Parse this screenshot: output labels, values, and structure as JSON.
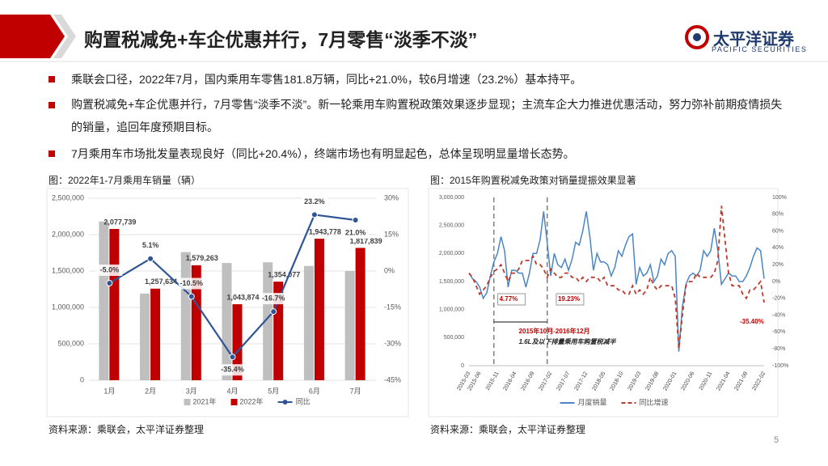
{
  "header": {
    "title": "购置税减免+车企优惠并行，7月零售“淡季不淡”",
    "logo_cn": "太平洋证券",
    "logo_en": "PACIFIC SECURITIES"
  },
  "bullets": [
    "乘联会口径，2022年7月，国内乘用车零售181.8万辆，同比+21.0%，较6月增速（23.2%）基本持平。",
    "购置税减免+车企优惠并行，7月零售“淡季不淡”。新一轮乘用车购置税政策效果逐步显现；主流车企大力推进优惠活动，努力弥补前期疫情损失的销量，追回年度预期目标。",
    "7月乘用车市场批发量表现良好（同比+20.4%），终端市场也有明显起色，总体呈现明显量增长态势。"
  ],
  "sources": [
    "资料来源：乘联会，太平洋证券整理",
    "资料来源：乘联会，太平洋证券整理"
  ],
  "page_number": "5",
  "chart_data": [
    {
      "type": "bar",
      "title": "图：2022年1-7月乘用车销量（辆）",
      "categories": [
        "1月",
        "2月",
        "3月",
        "4月",
        "5月",
        "6月",
        "7月"
      ],
      "series": [
        {
          "name": "2021年",
          "color": "#bfbfbf",
          "values": [
            2180000,
            1190000,
            1760000,
            1610000,
            1620000,
            1570000,
            1500000
          ]
        },
        {
          "name": "2022年",
          "color": "#c00000",
          "values": [
            2077739,
            1257634,
            1579263,
            1043874,
            1354077,
            1943778,
            1817839
          ],
          "value_labels": [
            "2,077,739",
            "1,257,634",
            "1,579,263",
            "1,043,874",
            "1,354,077",
            "1,943,778",
            "1,817,839"
          ]
        },
        {
          "name": "同比",
          "type": "line",
          "axis": "y2",
          "color": "#2f5597",
          "values": [
            -5.0,
            5.1,
            -10.5,
            -35.4,
            -16.7,
            23.2,
            21.0
          ],
          "value_labels": [
            "-5.0%",
            "5.1%",
            "-10.5%",
            "-35.4%",
            "-16.7%",
            "23.2%",
            "21.0%"
          ]
        }
      ],
      "ylim": [
        0,
        2500000
      ],
      "yticks": [
        0,
        {
          "value": 500000,
          "label": "500,000"
        },
        {
          "value": 1000000,
          "label": "1,000,000"
        },
        {
          "value": 1500000,
          "label": "1,500,000"
        },
        {
          "value": 2000000,
          "label": "2,000,000"
        },
        {
          "value": 2500000,
          "label": "2,500,000"
        }
      ],
      "y2lim": [
        -45,
        30
      ],
      "y2ticks": [
        {
          "value": -45,
          "label": "-45%"
        },
        {
          "value": -30,
          "label": "-30%"
        },
        {
          "value": -15,
          "label": "-15%"
        },
        {
          "value": 0,
          "label": "0%"
        },
        {
          "value": 15,
          "label": "15%"
        },
        {
          "value": 30,
          "label": "30%"
        }
      ],
      "grid": true,
      "legend": "bottom"
    },
    {
      "type": "line",
      "title": "图：2015年购置税减免政策对销量提振效果显著",
      "categories": [
        "2015-03",
        null,
        null,
        "2015-06",
        null,
        null,
        null,
        null,
        "2015-11",
        null,
        null,
        null,
        null,
        "2016-04",
        null,
        null,
        null,
        null,
        "2016-09",
        null,
        null,
        null,
        null,
        "2017-02",
        null,
        null,
        null,
        null,
        "2017-07",
        null,
        null,
        null,
        null,
        "2017-12",
        null,
        null,
        null,
        null,
        "2018-05",
        null,
        null,
        null,
        null,
        "2018-10",
        null,
        null,
        null,
        null,
        "2019-03",
        null,
        null,
        null,
        null,
        "2019-08",
        null,
        null,
        null,
        null,
        "2020-01",
        null,
        null,
        null,
        null,
        "2020-06",
        null,
        null,
        null,
        null,
        "2020-11",
        null,
        null,
        null,
        null,
        "2021-04",
        null,
        null,
        null,
        null,
        "2021-09",
        null,
        null,
        null,
        null,
        "2022-02"
      ],
      "series": [
        {
          "name": "月度销量",
          "color": "#4a86c5",
          "values": [
            1650000,
            1550000,
            1500000,
            1400000,
            1200000,
            1300000,
            1600000,
            1850000,
            2000000,
            2300000,
            2050000,
            1400000,
            1700000,
            1700000,
            1650000,
            1650000,
            1400000,
            1650000,
            2000000,
            2000000,
            2250000,
            2750000,
            2200000,
            1600000,
            2000000,
            1800000,
            1750000,
            1900000,
            1700000,
            1900000,
            2200000,
            2150000,
            2400000,
            2750000,
            2300000,
            1700000,
            2000000,
            1850000,
            1850000,
            1800000,
            1600000,
            1750000,
            2050000,
            1950000,
            2150000,
            2300000,
            2350000,
            1450000,
            1750000,
            1600000,
            1650000,
            1800000,
            1500000,
            1600000,
            1900000,
            1800000,
            2000000,
            2050000,
            1950000,
            250000,
            1050000,
            1450000,
            1600000,
            1650000,
            1600000,
            1700000,
            2050000,
            1950000,
            2050000,
            2450000,
            2050000,
            1450000,
            1550000,
            1650000,
            1600000,
            1600000,
            1500000,
            1500000,
            1600000,
            1750000,
            1950000,
            2100000,
            2050000,
            1550000
          ]
        },
        {
          "name": "同比增速",
          "color": "#c0392b",
          "axis": "y2",
          "dashed": true,
          "values": [
            10,
            5,
            -5,
            -15,
            -10,
            -5,
            5,
            12,
            15,
            20,
            10,
            0,
            10,
            10,
            15,
            25,
            25,
            25,
            30,
            20,
            20,
            15,
            5,
            15,
            10,
            5,
            5,
            10,
            10,
            5,
            5,
            0,
            5,
            0,
            5,
            5,
            5,
            0,
            5,
            -5,
            -5,
            -5,
            -10,
            -10,
            -15,
            -15,
            -5,
            -15,
            -10,
            -15,
            -10,
            5,
            -5,
            -10,
            -5,
            -5,
            -5,
            -5,
            -20,
            -80,
            -40,
            -5,
            0,
            0,
            10,
            5,
            5,
            5,
            5,
            10,
            25,
            90,
            50,
            10,
            -5,
            -5,
            -5,
            -15,
            -20,
            -10,
            -10,
            -5,
            0,
            -25
          ]
        }
      ],
      "ylim": [
        0,
        3000000
      ],
      "yticks": [
        0,
        {
          "value": 500000,
          "label": "500,000"
        },
        {
          "value": 1000000,
          "label": "1,000,000"
        },
        {
          "value": 1500000,
          "label": "1,500,000"
        },
        {
          "value": 2000000,
          "label": "2,000,000"
        },
        {
          "value": 2500000,
          "label": "2,500,000"
        },
        {
          "value": 3000000,
          "label": "3,000,000"
        }
      ],
      "y2lim": [
        -100,
        100
      ],
      "y2ticks": [
        {
          "value": -100,
          "label": "-100%"
        },
        {
          "value": -80,
          "label": "-80%"
        },
        {
          "value": -60,
          "label": "-60%"
        },
        {
          "value": -40,
          "label": "-40%"
        },
        {
          "value": -20,
          "label": "-20%"
        },
        {
          "value": 0,
          "label": "0%"
        },
        {
          "value": 20,
          "label": "20%"
        },
        {
          "value": 40,
          "label": "40%"
        },
        {
          "value": 60,
          "label": "60%"
        },
        {
          "value": 80,
          "label": "80%"
        },
        {
          "value": 100,
          "label": "100%"
        }
      ],
      "grid": false,
      "legend": "bottom",
      "annotations": [
        "4.77%",
        "19.23%",
        "2015年10月-2016年12月",
        "1.6L及以下排量乘用车购置税减半",
        "-35.40%"
      ]
    }
  ]
}
